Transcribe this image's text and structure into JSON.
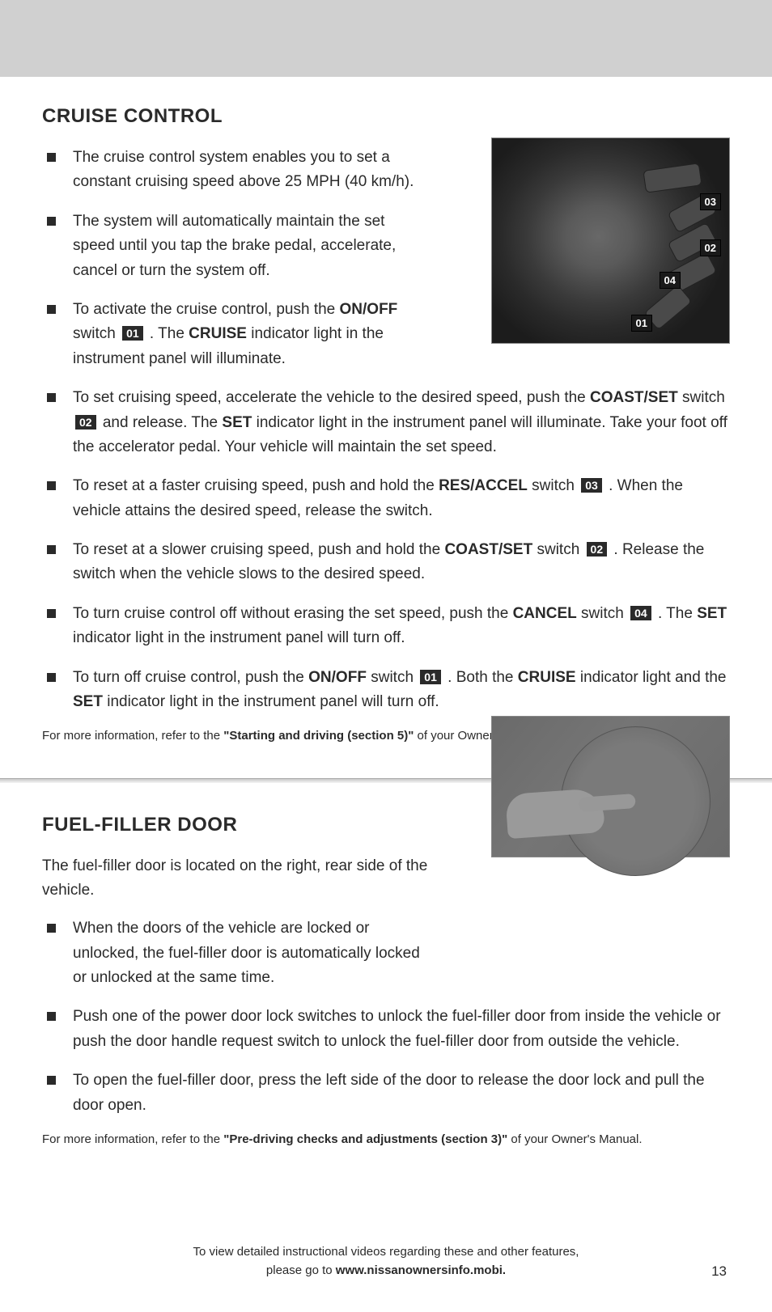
{
  "section1": {
    "title": "CRUISE CONTROL",
    "bullets": {
      "b1": "The cruise control system enables you to set a constant cruising speed above 25 MPH (40 km/h).",
      "b2": "The system will automatically maintain the set speed until you tap the brake pedal, accelerate, cancel or turn the system off.",
      "b3a": "To activate the cruise control, push the ",
      "b3_bold1": "ON/OFF",
      "b3b": " switch ",
      "b3_cb": "01",
      "b3c": " . The ",
      "b3_bold2": "CRUISE",
      "b3d": " indicator light in the instrument panel will illuminate.",
      "b4a": "To set cruising speed, accelerate the vehicle to the desired speed, push the ",
      "b4_bold1": "COAST/SET",
      "b4b": " switch ",
      "b4_cb": "02",
      "b4c": " and release. The ",
      "b4_bold2": "SET",
      "b4d": " indicator light in the instrument panel will illuminate. Take your foot off the accelerator pedal. Your vehicle will maintain the set speed.",
      "b5a": "To reset at a faster cruising speed, push and hold the ",
      "b5_bold1": "RES/ACCEL",
      "b5b": " switch ",
      "b5_cb": "03",
      "b5c": " . When the vehicle attains the desired speed, release the switch.",
      "b6a": "To reset at a slower cruising speed, push and hold the ",
      "b6_bold1": "COAST/SET",
      "b6b": " switch ",
      "b6_cb": "02",
      "b6c": " . Release the switch when the vehicle slows to the desired speed.",
      "b7a": "To turn cruise control off without erasing the set speed, push the ",
      "b7_bold1": "CANCEL",
      "b7b": " switch ",
      "b7_cb": "04",
      "b7c": " . The ",
      "b7_bold2": "SET",
      "b7d": " indicator light in the instrument panel will turn off.",
      "b8a": "To turn off cruise control, push the ",
      "b8_bold1": "ON/OFF",
      "b8b": " switch ",
      "b8_cb": "01",
      "b8c": " . Both the ",
      "b8_bold2": "CRUISE",
      "b8d": " indicator light and the ",
      "b8_bold3": "SET",
      "b8e": " indicator light in the instrument panel will turn off."
    },
    "footnote_a": "For more information, refer to the ",
    "footnote_bold": "\"Starting and driving (section 5)\"",
    "footnote_b": " of your Owner's Manual.",
    "fig_callouts": {
      "c1": "01",
      "c2": "02",
      "c3": "03",
      "c4": "04"
    }
  },
  "section2": {
    "title": "FUEL-FILLER DOOR",
    "intro": "The fuel-filler door is located on the right, rear side of the vehicle.",
    "bullets": {
      "b1": "When the doors of the vehicle are locked or unlocked, the fuel-filler door is automatically locked or unlocked at the same time.",
      "b2": "Push one of the power door lock switches to unlock the fuel-filler door from inside the vehicle or push the door handle request switch to unlock the fuel-filler door from outside the vehicle.",
      "b3": "To open the fuel-filler door, press the left side of the door to release the door lock and pull the door open."
    },
    "footnote_a": "For more information, refer to the ",
    "footnote_bold": "\"Pre-driving checks and adjustments (section 3)\"",
    "footnote_b": " of your Owner's Manual."
  },
  "footer": {
    "line1": "To view detailed instructional videos regarding these and other features,",
    "line2a": "please go to ",
    "line2b": "www.nissanownersinfo.mobi."
  },
  "page_number": "13",
  "fig2_top": "885"
}
